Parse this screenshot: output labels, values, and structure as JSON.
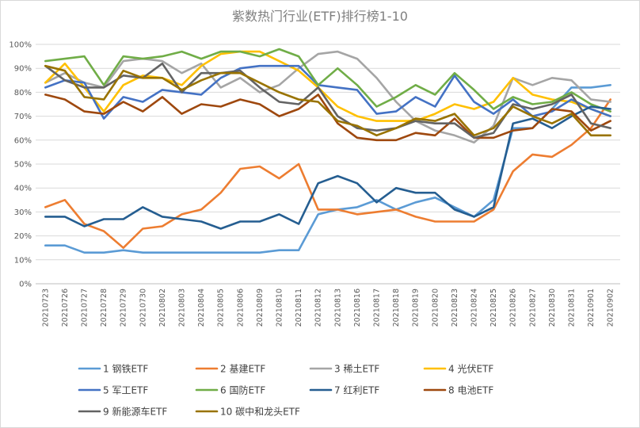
{
  "chart_data": {
    "type": "line",
    "title": "紫数热门行业(ETF)排行榜1-10",
    "xlabel": "",
    "ylabel": "",
    "ylim": [
      0,
      100
    ],
    "yticks": [
      "0%",
      "10%",
      "20%",
      "30%",
      "40%",
      "50%",
      "60%",
      "70%",
      "80%",
      "90%",
      "100%"
    ],
    "grid": true,
    "legend_position": "bottom",
    "x": [
      "20210723",
      "20210726",
      "20210727",
      "20210728",
      "20210729",
      "20210730",
      "20210802",
      "20210803",
      "20210804",
      "20210805",
      "20210806",
      "20210809",
      "20210810",
      "20210811",
      "20210812",
      "20210813",
      "20210816",
      "20210817",
      "20210818",
      "20210819",
      "20210820",
      "20210823",
      "20210824",
      "20210825",
      "20210826",
      "20210827",
      "20210830",
      "20210831",
      "20210901",
      "20210902"
    ],
    "series": [
      {
        "name": "1 钢铁ETF",
        "color": "#5b9bd5",
        "values": [
          16,
          16,
          13,
          13,
          14,
          13,
          13,
          13,
          13,
          13,
          13,
          13,
          14,
          14,
          29,
          31,
          32,
          35,
          31,
          34,
          36,
          32,
          28,
          35,
          65,
          65,
          73,
          82,
          82,
          83
        ]
      },
      {
        "name": "2 基建ETF",
        "color": "#ed7d31",
        "values": [
          32,
          35,
          25,
          22,
          15,
          23,
          24,
          29,
          31,
          38,
          48,
          49,
          44,
          50,
          31,
          31,
          29,
          30,
          31,
          28,
          26,
          26,
          26,
          31,
          47,
          54,
          53,
          58,
          65,
          77
        ]
      },
      {
        "name": "3 稀土ETF",
        "color": "#a5a5a5",
        "values": [
          84,
          88,
          84,
          82,
          93,
          94,
          93,
          88,
          92,
          82,
          86,
          80,
          83,
          90,
          96,
          97,
          94,
          86,
          76,
          68,
          64,
          62,
          59,
          66,
          86,
          83,
          86,
          85,
          77,
          76
        ]
      },
      {
        "name": "4 光伏ETF",
        "color": "#ffc000",
        "values": [
          84,
          92,
          82,
          72,
          83,
          87,
          86,
          83,
          91,
          96,
          97,
          97,
          93,
          89,
          82,
          74,
          70,
          68,
          68,
          68,
          71,
          75,
          73,
          76,
          86,
          79,
          77,
          76,
          73,
          70
        ]
      },
      {
        "name": "5 军工ETF",
        "color": "#4472c4",
        "values": [
          82,
          85,
          84,
          69,
          78,
          76,
          81,
          80,
          79,
          86,
          90,
          91,
          91,
          91,
          83,
          82,
          81,
          71,
          72,
          78,
          74,
          87,
          76,
          71,
          77,
          70,
          72,
          77,
          73,
          70
        ]
      },
      {
        "name": "6 国防ETF",
        "color": "#70ad47",
        "values": [
          93,
          94,
          95,
          83,
          95,
          94,
          95,
          97,
          94,
          97,
          97,
          95,
          98,
          95,
          83,
          90,
          83,
          74,
          78,
          83,
          79,
          88,
          81,
          73,
          78,
          75,
          76,
          80,
          75,
          72
        ]
      },
      {
        "name": "7 红利ETF",
        "color": "#255e91",
        "values": [
          28,
          28,
          24,
          27,
          27,
          32,
          28,
          27,
          26,
          23,
          26,
          26,
          29,
          25,
          42,
          45,
          42,
          34,
          40,
          38,
          38,
          31,
          28,
          32,
          67,
          69,
          65,
          70,
          74,
          73
        ]
      },
      {
        "name": "8 电池ETF",
        "color": "#9e480e",
        "values": [
          79,
          77,
          72,
          71,
          76,
          72,
          78,
          71,
          75,
          74,
          77,
          75,
          70,
          73,
          79,
          67,
          61,
          60,
          60,
          63,
          62,
          69,
          61,
          61,
          64,
          65,
          73,
          72,
          64,
          68
        ]
      },
      {
        "name": "9 新能源车ETF",
        "color": "#636363",
        "values": [
          91,
          85,
          82,
          82,
          87,
          86,
          92,
          80,
          88,
          88,
          89,
          82,
          76,
          75,
          82,
          70,
          65,
          64,
          65,
          68,
          67,
          67,
          61,
          63,
          75,
          73,
          75,
          79,
          67,
          65
        ]
      },
      {
        "name": "10 碳中和龙头ETF",
        "color": "#997300",
        "values": [
          91,
          89,
          78,
          77,
          89,
          86,
          86,
          81,
          85,
          88,
          88,
          84,
          80,
          77,
          76,
          68,
          66,
          62,
          65,
          69,
          68,
          71,
          62,
          65,
          74,
          70,
          67,
          71,
          62,
          62
        ]
      }
    ]
  }
}
